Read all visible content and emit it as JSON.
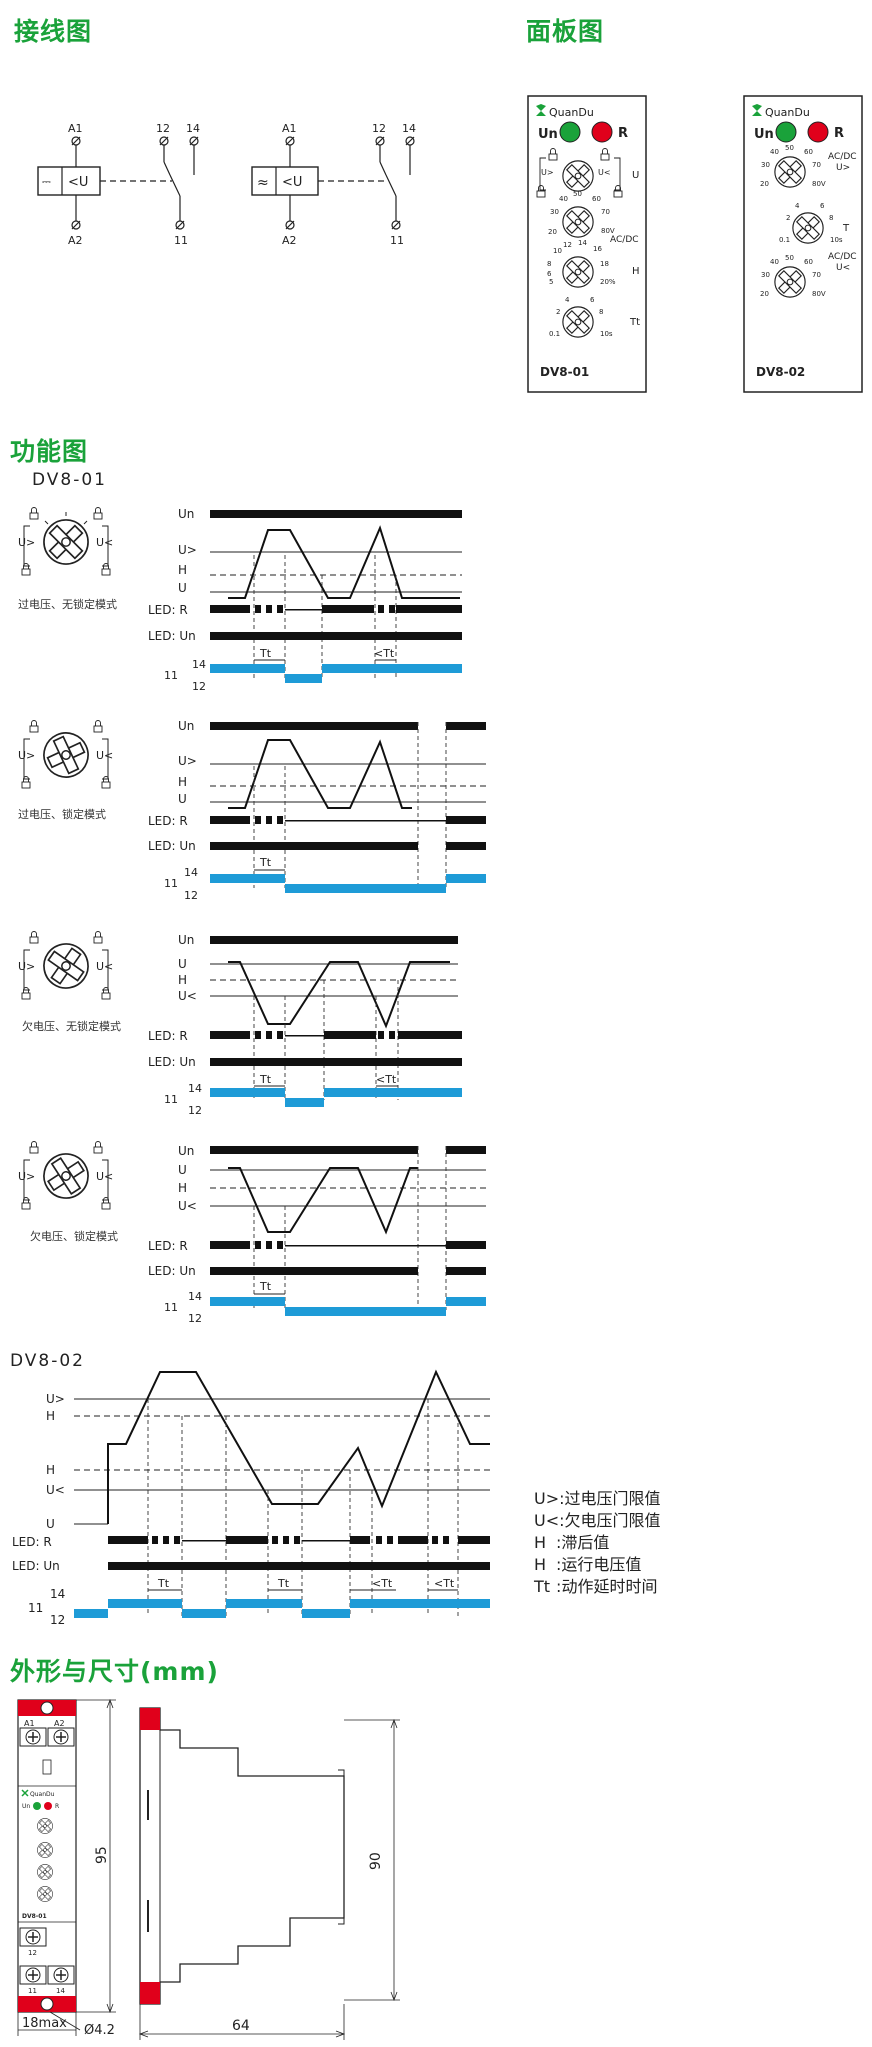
{
  "sections": {
    "wiring": "接线图",
    "panel": "面板图",
    "function": "功能图",
    "dimensions": "外形与尺寸(mm)"
  },
  "models": {
    "dv801": "DV8-01",
    "dv802": "DV8-02"
  },
  "wiring": {
    "a1": "A1",
    "a2": "A2",
    "t12": "12",
    "t14": "14",
    "t11": "11",
    "relay_label": "<U"
  },
  "panel": {
    "brand": "QuanDu",
    "un": "Un",
    "r": "R",
    "dv801": {
      "model": "DV8-01",
      "knob_u_label": "U",
      "knob_u_scale": [
        "20",
        "30",
        "40",
        "50",
        "60",
        "70",
        "80V"
      ],
      "knob_u_mode": "AC/DC",
      "knob_h_label": "H",
      "knob_h_scale": [
        "5",
        "6",
        "8",
        "10",
        "12",
        "14",
        "16",
        "18",
        "20%"
      ],
      "knob_tt_label": "Tt",
      "knob_tt_scale": [
        "0.1",
        "2",
        "4",
        "6",
        "8",
        "10s"
      ],
      "lock_left": "U>",
      "lock_right": "U<"
    },
    "dv802": {
      "model": "DV8-02",
      "top_mode": "AC/DC",
      "top_label": "U>",
      "mid_label": "T",
      "bottom_mode": "AC/DC",
      "bottom_label": "U<",
      "scale_u": [
        "20",
        "30",
        "40",
        "50",
        "60",
        "70",
        "80V"
      ],
      "scale_t": [
        "0.1",
        "2",
        "4",
        "6",
        "8",
        "10s"
      ]
    }
  },
  "timing": {
    "un": "Un",
    "u_gt": "U>",
    "u_lt": "U<",
    "h": "H",
    "u": "U",
    "led_r": "LED: R",
    "led_un": "LED: Un",
    "t11": "11",
    "t14": "14",
    "t12": "12",
    "tt": "Tt",
    "lt_tt": "<Tt",
    "modes": [
      "过电压、无锁定模式",
      "过电压、锁定模式",
      "欠电压、无锁定模式",
      "欠电压、锁定模式"
    ]
  },
  "legend": [
    {
      "sym": "U>",
      "desc": ":过电压门限值"
    },
    {
      "sym": "U<",
      "desc": ":欠电压门限值"
    },
    {
      "sym": "H",
      "desc": ":滞后值"
    },
    {
      "sym": "H",
      "desc": ":运行电压值"
    },
    {
      "sym": "Tt",
      "desc": ":动作延时时间"
    }
  ],
  "dimensions": {
    "height_front": "95",
    "height_side": "90",
    "width_side": "64",
    "width_front": "18max",
    "hole": "Ø4.2"
  },
  "colors": {
    "green": "#1aa23a",
    "blue": "#1e9bd7",
    "red": "#e0001b",
    "led_green": "#1aa23a"
  }
}
